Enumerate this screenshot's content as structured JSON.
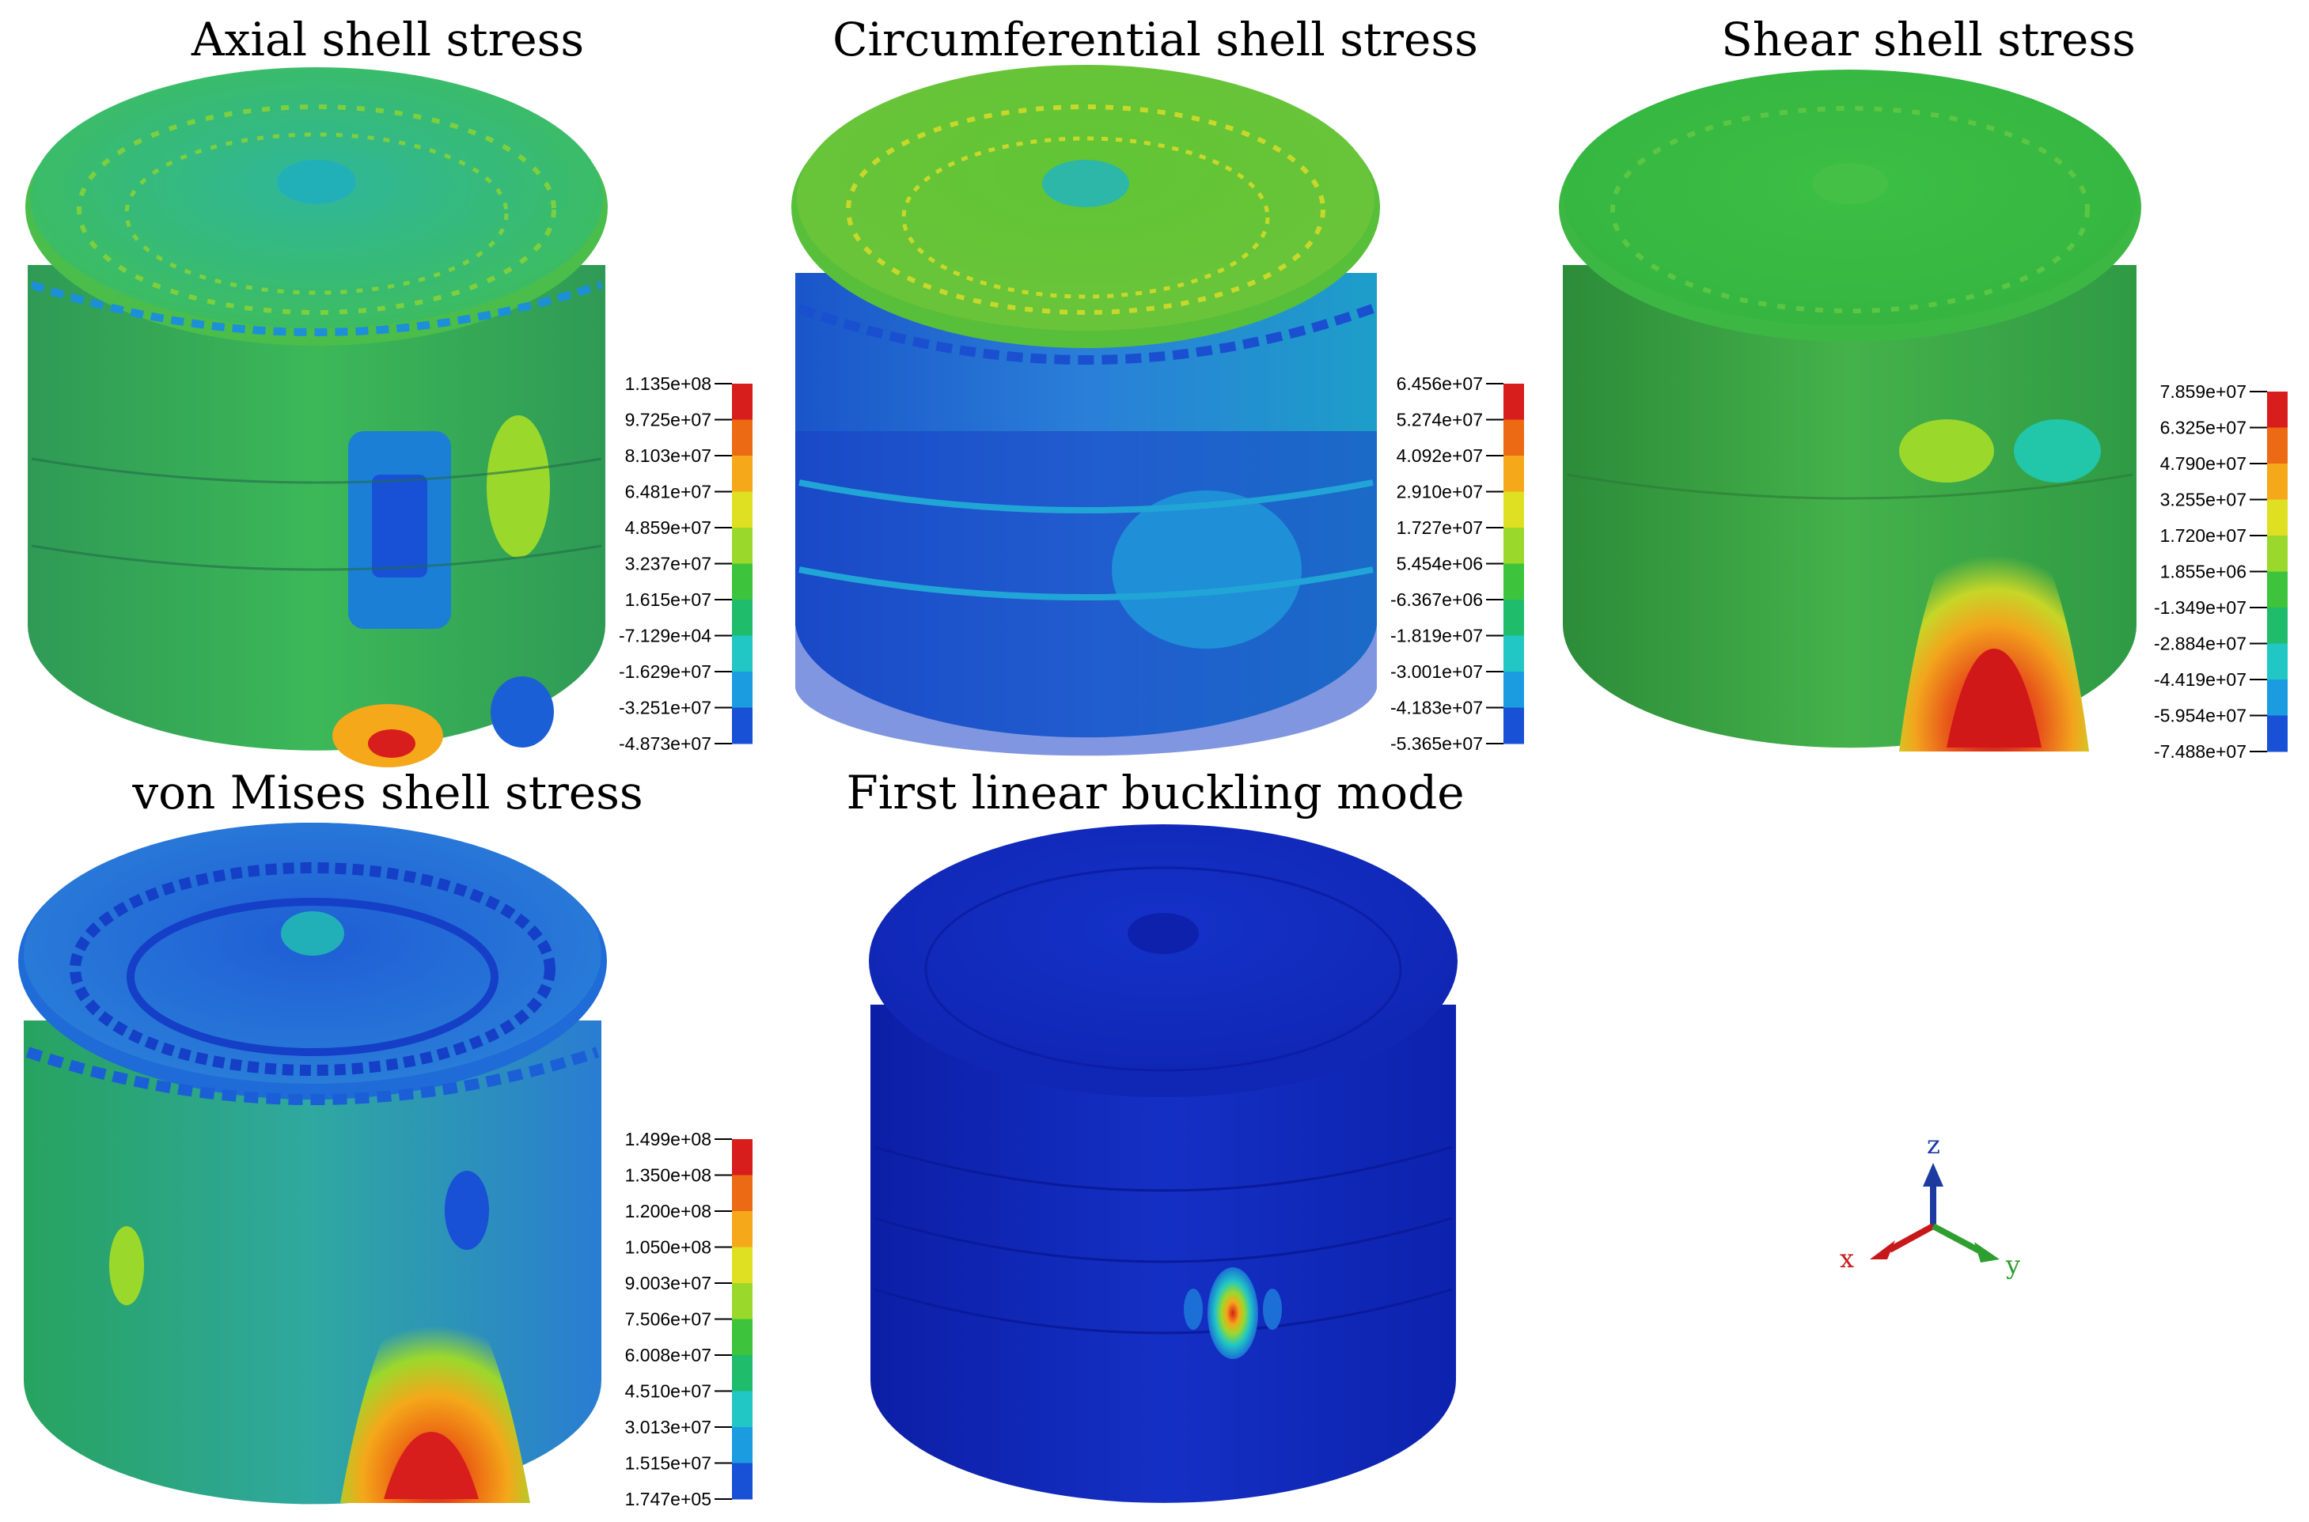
{
  "panels": [
    {
      "title": "Axial shell stress",
      "legend": [
        "1.135e+08",
        "9.725e+07",
        "8.103e+07",
        "6.481e+07",
        "4.859e+07",
        "3.237e+07",
        "1.615e+07",
        "-7.129e+04",
        "-1.629e+07",
        "-3.251e+07",
        "-4.873e+07"
      ]
    },
    {
      "title": "Circumferential shell stress",
      "legend": [
        "6.456e+07",
        "5.274e+07",
        "4.092e+07",
        "2.910e+07",
        "1.727e+07",
        "5.454e+06",
        "-6.367e+06",
        "-1.819e+07",
        "-3.001e+07",
        "-4.183e+07",
        "-5.365e+07"
      ]
    },
    {
      "title": "Shear shell stress",
      "legend": [
        "7.859e+07",
        "6.325e+07",
        "4.790e+07",
        "3.255e+07",
        "1.720e+07",
        "1.855e+06",
        "-1.349e+07",
        "-2.884e+07",
        "-4.419e+07",
        "-5.954e+07",
        "-7.488e+07"
      ]
    },
    {
      "title": "von Mises shell stress",
      "legend": [
        "1.499e+08",
        "1.350e+08",
        "1.200e+08",
        "1.050e+08",
        "9.003e+07",
        "7.506e+07",
        "6.008e+07",
        "4.510e+07",
        "3.013e+07",
        "1.515e+07",
        "1.747e+05"
      ]
    },
    {
      "title": "First linear buckling mode",
      "legend": []
    }
  ],
  "axes_triad": {
    "x": "x",
    "y": "y",
    "z": "z"
  },
  "colors": {
    "colorbar": [
      "#d81d1d",
      "#ec6a13",
      "#f4a81a",
      "#dfe021",
      "#9bd82c",
      "#3dc43c",
      "#1fbc6c",
      "#21c7c4",
      "#1b9be0",
      "#1850d6",
      "#0b1bb5"
    ],
    "axis_x": "#c8171a",
    "axis_y": "#2e9e2e",
    "axis_z": "#1c3aa0"
  }
}
